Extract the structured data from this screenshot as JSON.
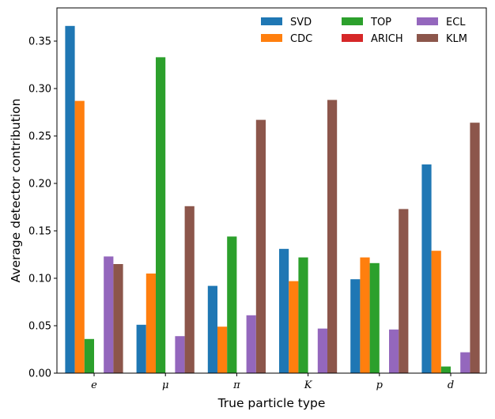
{
  "chart_data": {
    "type": "bar",
    "xlabel": "True particle type",
    "ylabel": "Average detector contribution",
    "categories": [
      "e",
      "μ",
      "π",
      "K",
      "p",
      "d"
    ],
    "ylim": [
      0,
      0.385
    ],
    "yticks": [
      "0.00",
      "0.05",
      "0.10",
      "0.15",
      "0.20",
      "0.25",
      "0.30",
      "0.35"
    ],
    "grid": false,
    "legend_position": "top-right",
    "series": [
      {
        "name": "SVD",
        "color": "#1f77b4",
        "values": [
          0.366,
          0.051,
          0.092,
          0.131,
          0.099,
          0.22
        ]
      },
      {
        "name": "CDC",
        "color": "#ff7f0e",
        "values": [
          0.287,
          0.105,
          0.049,
          0.097,
          0.122,
          0.129
        ]
      },
      {
        "name": "TOP",
        "color": "#2ca02c",
        "values": [
          0.036,
          0.333,
          0.144,
          0.122,
          0.116,
          0.007
        ]
      },
      {
        "name": "ARICH",
        "color": "#d62728",
        "values": [
          0.0,
          0.0,
          0.0,
          0.0,
          0.0,
          0.0
        ]
      },
      {
        "name": "ECL",
        "color": "#9467bd",
        "values": [
          0.123,
          0.039,
          0.061,
          0.047,
          0.046,
          0.022
        ]
      },
      {
        "name": "KLM",
        "color": "#8c564b",
        "values": [
          0.115,
          0.176,
          0.267,
          0.288,
          0.173,
          0.264
        ]
      }
    ]
  }
}
